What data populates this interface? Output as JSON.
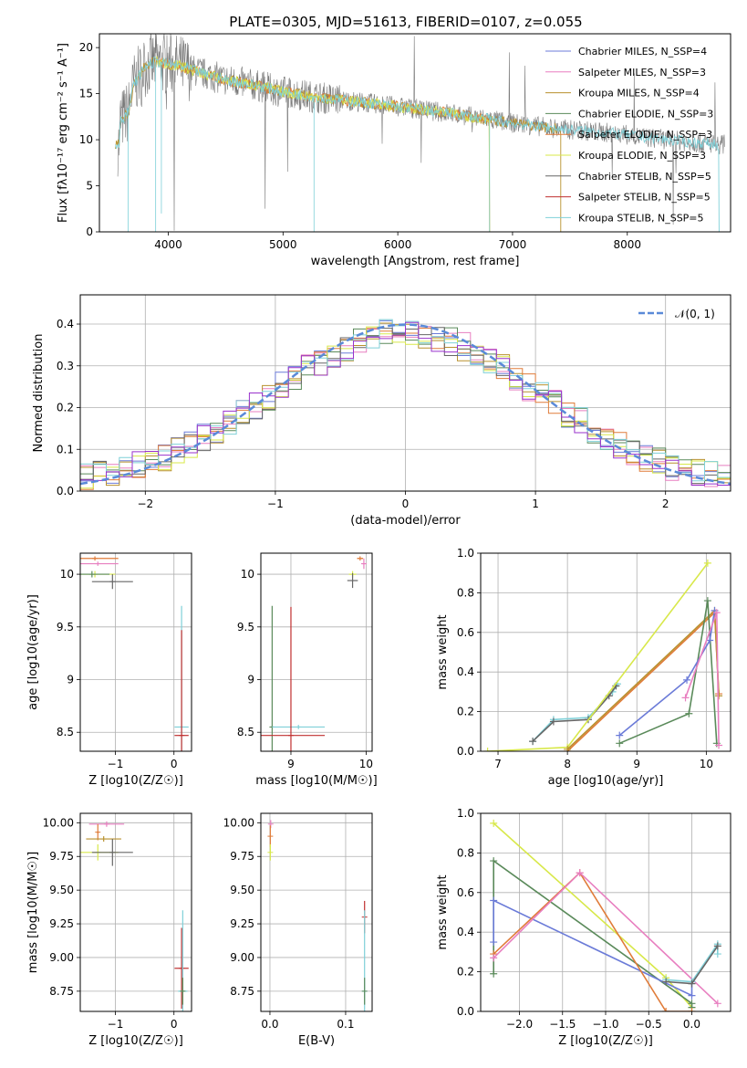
{
  "title": "PLATE=0305, MJD=51613, FIBERID=0107, z=0.055",
  "series_colors": [
    "#6b7bd8",
    "#e87fc0",
    "#b8912e",
    "#5a8a5a",
    "#e07c3a",
    "#d8e84a",
    "#666666",
    "#c03030",
    "#7fd0d8"
  ],
  "chart_data": [
    {
      "type": "line",
      "id": "spectrum",
      "xlabel": "wavelength [Angstrom, rest frame]",
      "ylabel": "Flux [fλ10⁻¹⁷ erg cm⁻² s⁻¹ A⁻¹]",
      "xlim": [
        3400,
        8900
      ],
      "ylim": [
        0,
        21.5
      ],
      "xticks": [
        4000,
        5000,
        6000,
        7000,
        8000
      ],
      "yticks": [
        0,
        5,
        10,
        15,
        20
      ],
      "grid": false,
      "legend": "top-right",
      "legend_entries": [
        "Chabrier MILES, N_SSP=4",
        "Salpeter MILES, N_SSP=3",
        "Kroupa MILES, N_SSP=4",
        "Chabrier ELODIE, N_SSP=3",
        "Salpeter ELODIE, N_SSP=3",
        "Kroupa ELODIE, N_SSP=3",
        "Chabrier STELIB, N_SSP=5",
        "Salpeter STELIB, N_SSP=5",
        "Kroupa STELIB, N_SSP=5"
      ],
      "continuum": {
        "x": [
          3580,
          3650,
          3700,
          3800,
          3900,
          4000,
          4100,
          4300,
          4500,
          4800,
          5000,
          5300,
          5600,
          6000,
          6500,
          7000,
          7400,
          7800,
          8200,
          8500,
          8800
        ],
        "y": [
          12.0,
          13.0,
          16.0,
          18.0,
          18.5,
          18.2,
          18.0,
          17.2,
          16.5,
          15.8,
          15.2,
          14.6,
          14.2,
          13.6,
          12.8,
          11.8,
          11.2,
          10.8,
          10.2,
          9.8,
          9.5
        ]
      },
      "ranges": {
        "MILES": [
          3540,
          7420
        ],
        "ELODIE": [
          3900,
          6800
        ],
        "STELIB": [
          3540,
          8800
        ]
      }
    },
    {
      "type": "line",
      "id": "residuals",
      "xlabel": "(data-model)/error",
      "ylabel": "Normed distribution",
      "xlim": [
        -2.5,
        2.5
      ],
      "ylim": [
        0,
        0.47
      ],
      "xticks": [
        -2,
        -1,
        0,
        1,
        2
      ],
      "yticks": [
        0.0,
        0.1,
        0.2,
        0.3,
        0.4
      ],
      "grid": true,
      "legend": "top-right",
      "legend_entries": [
        "𝒩(0, 1)"
      ],
      "normal_mu": 0,
      "normal_sigma": 1
    },
    {
      "type": "scatter",
      "id": "age-vs-Z",
      "xlabel": "Z [log10(Z/Z☉)]",
      "ylabel": "age [log10(age/yr)]",
      "xlim": [
        -1.6,
        0.3
      ],
      "ylim": [
        8.32,
        10.2
      ],
      "xticks": [
        -1,
        0
      ],
      "yticks": [
        8.5,
        9.0,
        9.5,
        10.0
      ],
      "grid": true,
      "points": [
        {
          "x": -1.35,
          "y": 10.15,
          "xerr": 0.4,
          "yerr": 0.02,
          "c": 4
        },
        {
          "x": -1.3,
          "y": 10.1,
          "xerr": 0.35,
          "yerr": 0.02,
          "c": 1
        },
        {
          "x": -1.35,
          "y": 10.0,
          "xerr": 0.35,
          "yerr": 0.03,
          "c": 5
        },
        {
          "x": -1.4,
          "y": 10.0,
          "xerr": 0.3,
          "yerr": 0.03,
          "c": 3
        },
        {
          "x": -1.05,
          "y": 9.93,
          "xerr": 0.35,
          "yerr": 0.07,
          "c": 6
        },
        {
          "x": 0.13,
          "y": 8.55,
          "xerr": 0.12,
          "yerr": 1.15,
          "c": 8
        },
        {
          "x": 0.13,
          "y": 8.47,
          "xerr": 0.12,
          "yerr": 1.0,
          "c": 7
        }
      ]
    },
    {
      "type": "scatter",
      "id": "age-vs-mass",
      "xlabel": "mass [log10(M/M☉)]",
      "ylabel": "",
      "xlim": [
        8.6,
        10.08
      ],
      "ylim": [
        8.32,
        10.2
      ],
      "xticks": [
        9,
        10
      ],
      "yticks": [
        8.5,
        9.0,
        9.5,
        10.0
      ],
      "grid": true,
      "points": [
        {
          "x": 9.92,
          "y": 10.15,
          "xerr": 0.04,
          "yerr": 0.02,
          "c": 4
        },
        {
          "x": 9.97,
          "y": 10.1,
          "xerr": 0.03,
          "yerr": 0.05,
          "c": 1
        },
        {
          "x": 9.82,
          "y": 10.0,
          "xerr": 0.05,
          "yerr": 0.03,
          "c": 5
        },
        {
          "x": 9.82,
          "y": 9.94,
          "xerr": 0.07,
          "yerr": 0.07,
          "c": 6
        },
        {
          "x": 8.75,
          "y": 8.55,
          "xerr": 0.02,
          "yerr": 1.15,
          "c": 3
        },
        {
          "x": 9.1,
          "y": 8.55,
          "xerr": 0.35,
          "yerr": 0.02,
          "c": 8
        },
        {
          "x": 9.0,
          "y": 8.47,
          "xerr": 0.45,
          "yerr": 1.22,
          "c": 7
        }
      ]
    },
    {
      "type": "line",
      "id": "weight-vs-age",
      "xlabel": "age [log10(age/yr)]",
      "ylabel": "mass weight",
      "xlim": [
        6.75,
        10.35
      ],
      "ylim": [
        0,
        1.0
      ],
      "xticks": [
        7,
        8,
        9,
        10
      ],
      "yticks": [
        0.0,
        0.2,
        0.4,
        0.6,
        0.8,
        1.0
      ],
      "grid": true,
      "series": [
        {
          "x": [
            7.5,
            7.8,
            8.3,
            8.65,
            8.72
          ],
          "y": [
            0.05,
            0.16,
            0.17,
            0.3,
            0.34
          ],
          "c": 8
        },
        {
          "x": [
            7.5,
            7.8,
            8.3,
            8.6,
            8.7
          ],
          "y": [
            0.05,
            0.15,
            0.16,
            0.28,
            0.33
          ],
          "c": 6
        },
        {
          "x": [
            6.85,
            8.0,
            10.02
          ],
          "y": [
            0.0,
            0.02,
            0.95
          ],
          "c": 5
        },
        {
          "x": [
            8.0,
            10.12,
            10.18
          ],
          "y": [
            0.0,
            0.7,
            0.29
          ],
          "c": 4
        },
        {
          "x": [
            8.0,
            10.12,
            10.18
          ],
          "y": [
            0.01,
            0.71,
            0.28
          ],
          "c": 2
        },
        {
          "x": [
            8.75,
            9.75,
            10.02,
            10.15
          ],
          "y": [
            0.04,
            0.19,
            0.76,
            0.04
          ],
          "c": 3
        },
        {
          "x": [
            8.75,
            9.72,
            10.05,
            10.12
          ],
          "y": [
            0.08,
            0.36,
            0.56,
            0.71
          ],
          "c": 0
        },
        {
          "x": [
            9.7,
            10.15,
            10.18
          ],
          "y": [
            0.27,
            0.7,
            0.03
          ],
          "c": 1
        }
      ]
    },
    {
      "type": "scatter",
      "id": "mass-vs-Z",
      "xlabel": "Z [log10(Z/Z☉)]",
      "ylabel": "mass [log10(M/M☉)]",
      "xlim": [
        -1.6,
        0.3
      ],
      "ylim": [
        8.6,
        10.07
      ],
      "xticks": [
        -1,
        0
      ],
      "yticks": [
        8.75,
        9.0,
        9.25,
        9.5,
        9.75,
        10.0
      ],
      "grid": true,
      "points": [
        {
          "x": -1.15,
          "y": 9.99,
          "xerr": 0.3,
          "yerr": 0.02,
          "c": 1
        },
        {
          "x": -1.3,
          "y": 9.93,
          "xerr": 0.02,
          "yerr": 0.06,
          "c": 4
        },
        {
          "x": -1.2,
          "y": 9.88,
          "xerr": 0.3,
          "yerr": 0.02,
          "c": 2
        },
        {
          "x": -1.3,
          "y": 9.78,
          "xerr": 0.35,
          "yerr": 0.06,
          "c": 5
        },
        {
          "x": -1.05,
          "y": 9.78,
          "xerr": 0.35,
          "yerr": 0.1,
          "c": 6
        },
        {
          "x": 0.13,
          "y": 8.92,
          "xerr": 0.12,
          "yerr": 0.3,
          "c": 7
        },
        {
          "x": 0.15,
          "y": 8.75,
          "xerr": 0.08,
          "yerr": 0.6,
          "c": 8
        },
        {
          "x": 0.15,
          "y": 8.75,
          "xerr": 0.02,
          "yerr": 0.1,
          "c": 3
        }
      ]
    },
    {
      "type": "scatter",
      "id": "mass-vs-ebv",
      "xlabel": "E(B-V)",
      "ylabel": "",
      "xlim": [
        -0.012,
        0.135
      ],
      "ylim": [
        8.6,
        10.07
      ],
      "xticks": [
        0.0,
        0.1
      ],
      "yticks": [
        8.75,
        9.0,
        9.25,
        9.5,
        9.75,
        10.0
      ],
      "grid": true,
      "points": [
        {
          "x": 0.001,
          "y": 9.99,
          "xerr": 0,
          "yerr": 0.03,
          "c": 1
        },
        {
          "x": 0.0005,
          "y": 9.9,
          "xerr": 0,
          "yerr": 0.08,
          "c": 4
        },
        {
          "x": 0.0005,
          "y": 9.78,
          "xerr": 0,
          "yerr": 0.06,
          "c": 5
        },
        {
          "x": 0.125,
          "y": 9.3,
          "xerr": 0,
          "yerr": 0.12,
          "c": 7
        },
        {
          "x": 0.125,
          "y": 8.75,
          "xerr": 0,
          "yerr": 0.6,
          "c": 8
        },
        {
          "x": 0.125,
          "y": 8.75,
          "xerr": 0,
          "yerr": 0.1,
          "c": 3
        }
      ]
    },
    {
      "type": "line",
      "id": "weight-vs-Z",
      "xlabel": "Z [log10(Z/Z☉)]",
      "ylabel": "mass weight",
      "xlim": [
        -2.45,
        0.45
      ],
      "ylim": [
        0,
        1.0
      ],
      "xticks": [
        -2.0,
        -1.5,
        -1.0,
        -0.5,
        0.0
      ],
      "yticks": [
        0.0,
        0.2,
        0.4,
        0.6,
        0.8,
        1.0
      ],
      "grid": true,
      "series": [
        {
          "x": [
            -2.3,
            -0.3,
            0.0
          ],
          "y": [
            0.95,
            0.17,
            0.02
          ],
          "c": 5
        },
        {
          "x": [
            -2.3,
            -2.3,
            0.0,
            0.0
          ],
          "y": [
            0.19,
            0.76,
            0.04,
            0.02
          ],
          "c": 3
        },
        {
          "x": [
            -2.3,
            -2.3,
            0.0,
            0.0
          ],
          "y": [
            0.35,
            0.56,
            0.08,
            0.15
          ],
          "c": 0
        },
        {
          "x": [
            -2.3,
            -1.3,
            -0.3,
            0.0
          ],
          "y": [
            0.29,
            0.7,
            0.0,
            0.0
          ],
          "c": 4
        },
        {
          "x": [
            -2.3,
            -1.3,
            0.3
          ],
          "y": [
            0.27,
            0.7,
            0.04
          ],
          "c": 1
        },
        {
          "x": [
            -0.3,
            0.0,
            0.3,
            0.3
          ],
          "y": [
            0.16,
            0.15,
            0.34,
            0.29
          ],
          "c": 8
        },
        {
          "x": [
            -0.3,
            0.0,
            0.3
          ],
          "y": [
            0.15,
            0.14,
            0.33
          ],
          "c": 6
        }
      ]
    }
  ]
}
